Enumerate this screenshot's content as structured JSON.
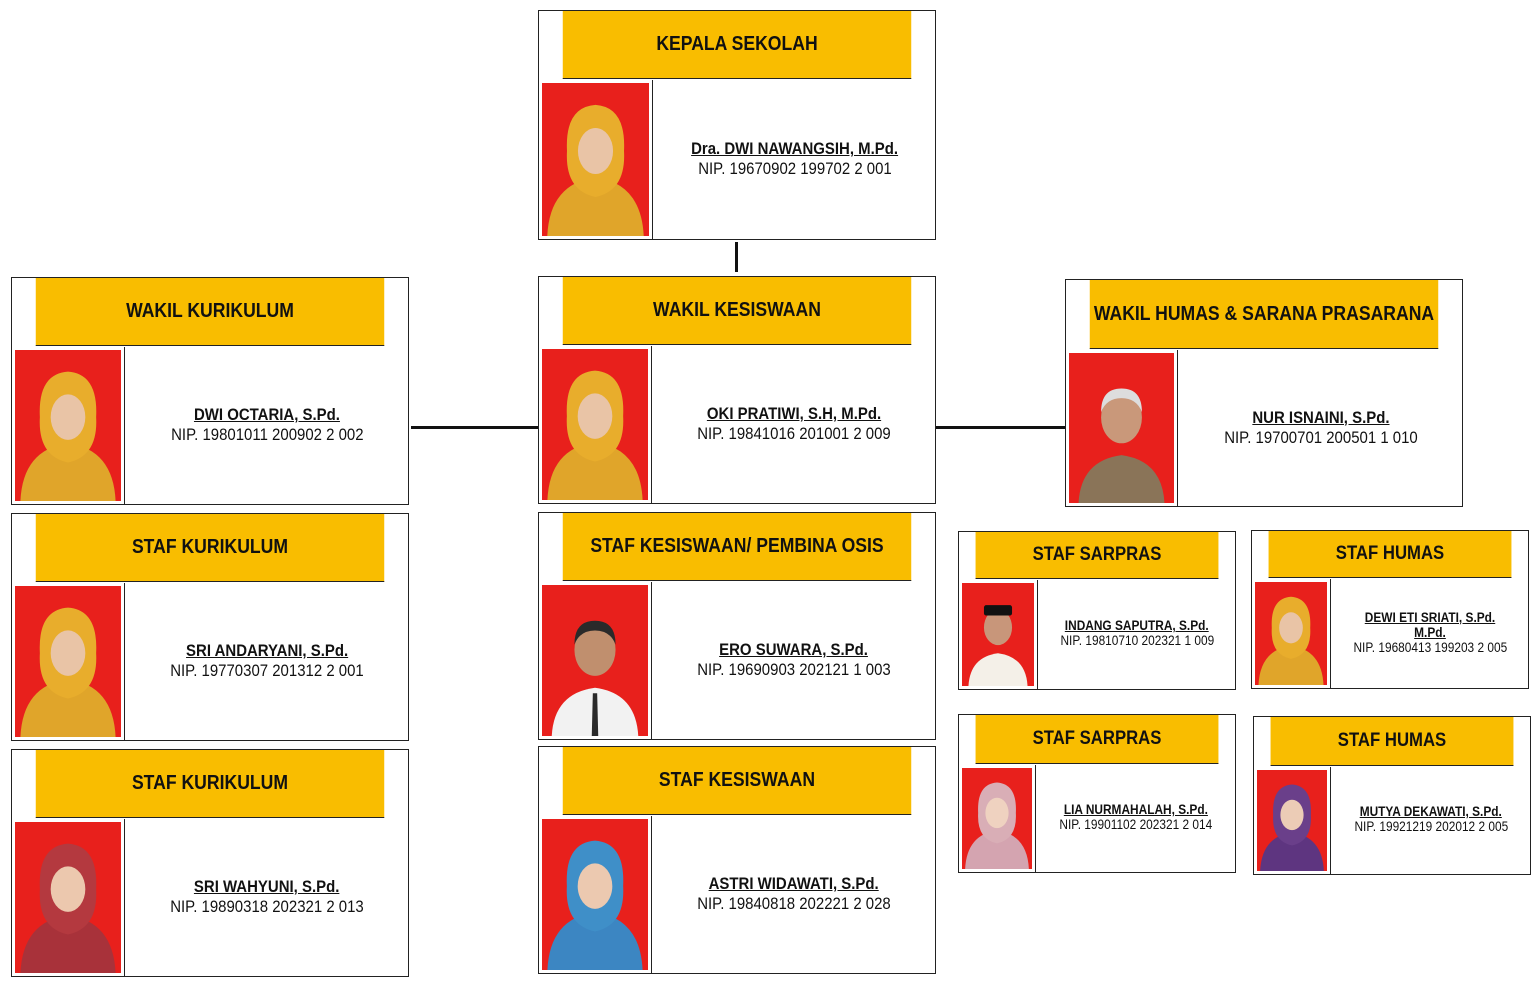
{
  "colors": {
    "header": "#f9bd00",
    "photo_bg": "#e8201c",
    "line": "#111111"
  },
  "cards": {
    "kepsek": {
      "title": "KEPALA SEKOLAH",
      "name": "Dra. DWI NAWANGSIH, M.Pd.",
      "nip": "NIP. 19670902 199702 2 001",
      "photo": "female-hijab-yellow-portrait"
    },
    "wakakur": {
      "title": "WAKIL KURIKULUM",
      "name": "DWI OCTARIA, S.Pd.",
      "nip": "NIP. 19801011 200902 2 002",
      "photo": "female-hijab-yellow-portrait"
    },
    "wakasis": {
      "title": "WAKIL KESISWAAN",
      "name": "OKI PRATIWI, S.H, M.Pd.",
      "nip": "NIP. 19841016 201001 2 009",
      "photo": "female-hijab-yellow-portrait"
    },
    "wakahum": {
      "title": "WAKIL HUMAS & SARANA PRASARANA",
      "name": "NUR ISNAINI, S.Pd.",
      "nip": "NIP. 19700701 200501 1 010",
      "photo": "male-uniform-portrait"
    },
    "stafkur1": {
      "title": "STAF KURIKULUM",
      "name": "SRI ANDARYANI, S.Pd.",
      "nip": "NIP. 19770307 201312 2 001",
      "photo": "female-hijab-yellow-portrait"
    },
    "stafkur2": {
      "title": "STAF KURIKULUM",
      "name": "SRI WAHYUNI, S.Pd.",
      "nip": "NIP. 19890318 202321 2 013",
      "photo": "female-hijab-maroon-portrait"
    },
    "stafsis1": {
      "title": "STAF KESISWAAN/ PEMBINA OSIS",
      "name": "ERO SUWARA, S.Pd.",
      "nip": "NIP. 19690903 202121 1 003",
      "photo": "male-white-shirt-portrait"
    },
    "stafsis2": {
      "title": "STAF KESISWAAN",
      "name": "ASTRI WIDAWATI, S.Pd.",
      "nip": "NIP. 19840818 202221 2 028",
      "photo": "female-hijab-blue-batik-portrait"
    },
    "sarpras1": {
      "title": "STAF SARPRAS",
      "name": "INDANG SAPUTRA, S.Pd.",
      "nip": "NIP. 19810710 202321 1 009",
      "photo": "male-peci-portrait"
    },
    "humas1": {
      "title": "STAF HUMAS",
      "name": "DEWI ETI SRIATI, S.Pd. M.Pd.",
      "nip": "NIP. 19680413 199203 2 005",
      "photo": "female-hijab-yellow-portrait"
    },
    "sarpras2": {
      "title": "STAF SARPRAS",
      "name": "LIA NURMAHALAH, S.Pd.",
      "nip": "NIP. 19901102 202321 2 014",
      "photo": "female-hijab-pink-portrait"
    },
    "humas2": {
      "title": "STAF HUMAS",
      "name": "MUTYA DEKAWATI, S.Pd.",
      "nip": "NIP. 19921219 202012 2 005",
      "photo": "female-hijab-purple-portrait"
    }
  }
}
